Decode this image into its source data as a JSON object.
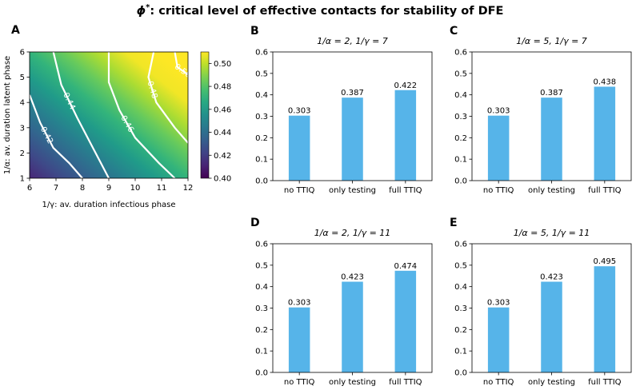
{
  "figure": {
    "title_symbol": "ϕ",
    "title_sup": "*",
    "title_rest": ": critical level of effective contacts for stability of DFE"
  },
  "chart_data": [
    {
      "panel": "A",
      "type": "heatmap",
      "xlabel": "1/γ: av. duration infectious phase",
      "ylabel": "1/α: av. duration latent phase",
      "xlim": [
        6,
        12
      ],
      "ylim": [
        1,
        6
      ],
      "x_ticks": [
        6,
        7,
        8,
        9,
        10,
        11,
        12
      ],
      "y_ticks": [
        1,
        2,
        3,
        4,
        5,
        6
      ],
      "colorbar": {
        "min": 0.4,
        "max": 0.51,
        "ticks": [
          0.4,
          0.42,
          0.44,
          0.46,
          0.48,
          0.5
        ],
        "tick_labels": [
          "0.40",
          "0.42",
          "0.44",
          "0.46",
          "0.48",
          "0.50"
        ],
        "colormap": "viridis"
      },
      "contours": [
        {
          "level": 0.42,
          "label": "0.42",
          "points": [
            [
              6,
              4.3
            ],
            [
              6.4,
              3.2
            ],
            [
              6.9,
              2.2
            ],
            [
              7.5,
              1.6
            ],
            [
              8.0,
              1.0
            ]
          ]
        },
        {
          "level": 0.44,
          "label": "0.44",
          "points": [
            [
              6.9,
              6.0
            ],
            [
              7.2,
              4.7
            ],
            [
              7.8,
              3.4
            ],
            [
              8.4,
              2.2
            ],
            [
              9.0,
              1.0
            ]
          ]
        },
        {
          "level": 0.46,
          "label": "0.46",
          "points": [
            [
              9.0,
              6.0
            ],
            [
              9.0,
              4.8
            ],
            [
              9.4,
              3.7
            ],
            [
              10.0,
              2.6
            ],
            [
              10.9,
              1.6
            ],
            [
              11.5,
              1.0
            ]
          ]
        },
        {
          "level": 0.48,
          "label": "0.48",
          "points": [
            [
              10.7,
              6.0
            ],
            [
              10.5,
              5.0
            ],
            [
              10.8,
              4.0
            ],
            [
              11.5,
              3.0
            ],
            [
              12.0,
              2.4
            ]
          ]
        },
        {
          "level": 0.5,
          "label": "0.50",
          "points": [
            [
              12.0,
              5.1
            ],
            [
              11.6,
              5.4
            ],
            [
              11.5,
              6.0
            ]
          ]
        }
      ]
    },
    {
      "panel": "B",
      "type": "bar",
      "title": "1/α = 2, 1/γ = 7",
      "categories": [
        "no TTIQ",
        "only testing",
        "full TTIQ"
      ],
      "values": [
        0.303,
        0.387,
        0.422
      ],
      "value_labels": [
        "0.303",
        "0.387",
        "0.422"
      ],
      "ylim": [
        0,
        0.6
      ],
      "yticks": [
        "0.0",
        "0.1",
        "0.2",
        "0.3",
        "0.4",
        "0.5",
        "0.6"
      ],
      "color": "#56b4e9"
    },
    {
      "panel": "C",
      "type": "bar",
      "title": "1/α = 5, 1/γ = 7",
      "categories": [
        "no TTIQ",
        "only testing",
        "full TTIQ"
      ],
      "values": [
        0.303,
        0.387,
        0.438
      ],
      "value_labels": [
        "0.303",
        "0.387",
        "0.438"
      ],
      "ylim": [
        0,
        0.6
      ],
      "yticks": [
        "0.0",
        "0.1",
        "0.2",
        "0.3",
        "0.4",
        "0.5",
        "0.6"
      ],
      "color": "#56b4e9"
    },
    {
      "panel": "D",
      "type": "bar",
      "title": "1/α = 2, 1/γ = 11",
      "categories": [
        "no TTIQ",
        "only testing",
        "full TTIQ"
      ],
      "values": [
        0.303,
        0.423,
        0.474
      ],
      "value_labels": [
        "0.303",
        "0.423",
        "0.474"
      ],
      "ylim": [
        0,
        0.6
      ],
      "yticks": [
        "0.0",
        "0.1",
        "0.2",
        "0.3",
        "0.4",
        "0.5",
        "0.6"
      ],
      "color": "#56b4e9"
    },
    {
      "panel": "E",
      "type": "bar",
      "title": "1/α = 5, 1/γ = 11",
      "categories": [
        "no TTIQ",
        "only testing",
        "full TTIQ"
      ],
      "values": [
        0.303,
        0.423,
        0.495
      ],
      "value_labels": [
        "0.303",
        "0.423",
        "0.495"
      ],
      "ylim": [
        0,
        0.6
      ],
      "yticks": [
        "0.0",
        "0.1",
        "0.2",
        "0.3",
        "0.4",
        "0.5",
        "0.6"
      ],
      "color": "#56b4e9"
    }
  ]
}
